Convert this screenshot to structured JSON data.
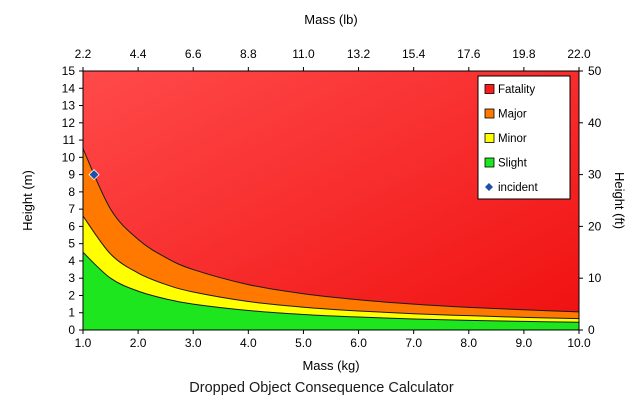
{
  "caption": "Dropped Object Consequence Calculator",
  "chart_data": {
    "type": "area",
    "title": "",
    "x": [
      1.0,
      1.5,
      2.0,
      2.5,
      3.0,
      4.0,
      5.0,
      6.0,
      7.0,
      8.0,
      9.0,
      10.0
    ],
    "series": [
      {
        "name": "Slight",
        "color": "#1ee61e",
        "values": [
          4.5,
          3.0,
          2.25,
          1.8,
          1.5,
          1.13,
          0.9,
          0.75,
          0.64,
          0.56,
          0.5,
          0.45
        ]
      },
      {
        "name": "Minor",
        "color": "#ffff00",
        "values": [
          6.6,
          4.4,
          3.3,
          2.64,
          2.2,
          1.65,
          1.32,
          1.1,
          0.94,
          0.83,
          0.73,
          0.66
        ]
      },
      {
        "name": "Major",
        "color": "#ff7800",
        "values": [
          10.5,
          7.0,
          5.25,
          4.2,
          3.5,
          2.63,
          2.1,
          1.75,
          1.5,
          1.31,
          1.17,
          1.05
        ]
      },
      {
        "name": "Fatality",
        "color": "#ff1a1a",
        "values": [
          15,
          15,
          15,
          15,
          15,
          15,
          15,
          15,
          15,
          15,
          15,
          15
        ]
      }
    ],
    "incident": {
      "name": "incident",
      "x": 1.2,
      "y": 9.0,
      "color": "#1f4fa8"
    },
    "xlabel": "Mass (kg)",
    "ylabel": "Height (m)",
    "x2label": "Mass (lb)",
    "y2label": "Height (ft)",
    "xlim": [
      1.0,
      10.0
    ],
    "ylim": [
      0,
      15
    ],
    "x2lim": [
      2.2,
      22.0
    ],
    "y2lim": [
      0,
      50
    ],
    "xticks": [
      "1.0",
      "2.0",
      "3.0",
      "4.0",
      "5.0",
      "6.0",
      "7.0",
      "8.0",
      "9.0",
      "10.0"
    ],
    "yticks": [
      "0",
      "1",
      "2",
      "3",
      "4",
      "5",
      "6",
      "7",
      "8",
      "9",
      "10",
      "11",
      "12",
      "13",
      "14",
      "15"
    ],
    "x2ticks": [
      "2.2",
      "4.4",
      "6.6",
      "8.8",
      "11.0",
      "13.2",
      "15.4",
      "17.6",
      "19.8",
      "22.0"
    ],
    "y2ticks": [
      "0",
      "10",
      "20",
      "30",
      "40",
      "50"
    ],
    "legend": [
      "Fatality",
      "Major",
      "Minor",
      "Slight",
      "incident"
    ],
    "legend_position": "top-right",
    "grid": false
  }
}
